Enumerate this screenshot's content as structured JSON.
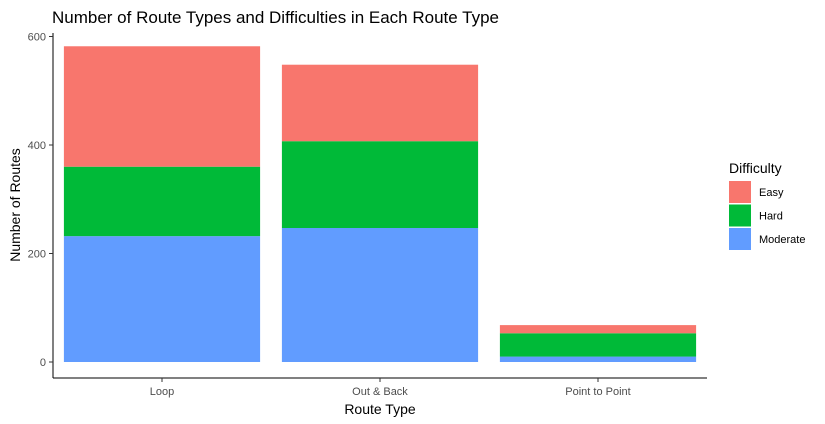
{
  "chart_data": {
    "type": "bar",
    "stacked": true,
    "title": "Number of Route Types and Difficulties in Each Route Type",
    "xlabel": "Route Type",
    "ylabel": "Number of Routes",
    "categories": [
      "Loop",
      "Out & Back",
      "Point to Point"
    ],
    "series": [
      {
        "name": "Moderate",
        "color": "#619CFF",
        "values": [
          232,
          247,
          10
        ]
      },
      {
        "name": "Hard",
        "color": "#00BA38",
        "values": [
          128,
          160,
          43
        ]
      },
      {
        "name": "Easy",
        "color": "#F8766D",
        "values": [
          222,
          141,
          15
        ]
      }
    ],
    "ylim": [
      0,
      620
    ],
    "yticks": [
      0,
      200,
      400,
      600
    ],
    "grid": false,
    "legend": {
      "title": "Difficulty",
      "position": "right",
      "items": [
        "Easy",
        "Hard",
        "Moderate"
      ]
    }
  }
}
